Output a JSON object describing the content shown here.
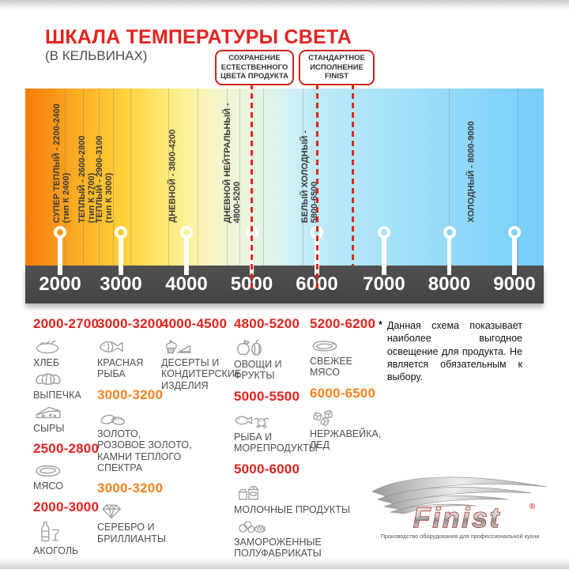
{
  "title": "ШКАЛА ТЕМПЕРАТУРЫ СВЕТА",
  "subtitle": "(В КЕЛЬВИНАХ)",
  "callouts": [
    {
      "label": "СОХРАНЕНИЕ\nЕСТЕСТВЕННОГО\nЦВЕТА ПРОДУКТА"
    },
    {
      "label": "СТАНДАРТНОЕ\nИСПОЛНЕНИЕ\nFINIST"
    }
  ],
  "scale": {
    "unit": "Кельвины",
    "ticks": [
      "2000",
      "3000",
      "4000",
      "5000",
      "6000",
      "7000",
      "8000",
      "9000"
    ],
    "zones": [
      {
        "line1": "СУПЕР ТЕПЛЫЙ - 2200-2400",
        "line2": "(тип К 2400)"
      },
      {
        "line1": "ТЕПЛЫЙ - 2600-2800",
        "line2": "(тип К 2700)"
      },
      {
        "line1": "ТЕПЛЫЙ - 2900-3100",
        "line2": "(тип К 3000)"
      },
      {
        "line1": "ДНЕВНОЙ - 3800-4200",
        "line2": ""
      },
      {
        "line1": "ДНЕВНОЙ НЕЙТРАЛЬНЫЙ -",
        "line2": "4800-5200"
      },
      {
        "line1": "БЕЛЫЙ ХОЛОДНЫЙ -",
        "line2": "5800-6500"
      },
      {
        "line1": "ХОЛОДНЫЙ - 8000-9000",
        "line2": ""
      }
    ]
  },
  "categories": {
    "columns": [
      {
        "items": [
          {
            "type": "range",
            "color": "red",
            "text": "2000-2700"
          },
          {
            "type": "entry",
            "icon": "bread-icon",
            "label": "ХЛЕБ"
          },
          {
            "type": "entry",
            "icon": "croissant-icon",
            "label": "ВЫПЕЧКА"
          },
          {
            "type": "entry",
            "icon": "cheese-icon",
            "label": "СЫРЫ"
          },
          {
            "type": "range",
            "color": "red",
            "text": "2500-2800"
          },
          {
            "type": "entry",
            "icon": "meat-icon",
            "label": "МЯСО"
          },
          {
            "type": "range",
            "color": "red",
            "text": "2000-3000"
          },
          {
            "type": "entry",
            "icon": "alcohol-icon",
            "label": "АКОГОЛЬ"
          }
        ]
      },
      {
        "items": [
          {
            "type": "range",
            "color": "red",
            "text": "3000-3200"
          },
          {
            "type": "entry",
            "icon": "fish-icon",
            "label": "КРАСНАЯ\nРЫБА"
          },
          {
            "type": "range",
            "color": "orange",
            "text": "3000-3200"
          },
          {
            "type": "entry",
            "icon": "rings-icon",
            "label": "ЗОЛОТО,\nРОЗОВОЕ ЗОЛОТО,\nКАМНИ ТЕПЛОГО\nСПЕКТРА"
          },
          {
            "type": "range",
            "color": "orange",
            "text": "3000-3200"
          },
          {
            "type": "entry",
            "icon": "diamond-icon",
            "label": "СЕРЕБРО И\nБРИЛЛИАНТЫ"
          }
        ]
      },
      {
        "items": [
          {
            "type": "range",
            "color": "red",
            "text": "4000-4500"
          },
          {
            "type": "entry",
            "icon": "dessert-icon",
            "label": "ДЕСЕРТЫ И\nКОНДИТЕРСКИЕ\nИЗДЕЛИЯ"
          }
        ]
      },
      {
        "items": [
          {
            "type": "range",
            "color": "red",
            "text": "4800-5200"
          },
          {
            "type": "entry",
            "icon": "fruits-icon",
            "label": "ОВОЩИ И\nФРУКТЫ"
          },
          {
            "type": "range",
            "color": "red",
            "text": "5000-5500"
          },
          {
            "type": "entry",
            "icon": "seafood-icon",
            "label": "РЫБА И\nМОРЕПРОДУКТЫ"
          },
          {
            "type": "range",
            "color": "red",
            "text": "5000-6000"
          },
          {
            "type": "entry",
            "icon": "milk-icon",
            "label": "МОЛОЧНЫЕ ПРОДУКТЫ"
          },
          {
            "type": "entry",
            "icon": "frozen-icon",
            "label": "ЗАМОРОЖЕННЫЕ\nПОЛУФАБРИКАТЫ"
          }
        ]
      },
      {
        "items": [
          {
            "type": "range",
            "color": "red",
            "text": "5200-6200"
          },
          {
            "type": "entry",
            "icon": "steak-icon",
            "label": "СВЕЖЕЕ\nМЯСО"
          },
          {
            "type": "range",
            "color": "orange",
            "text": "6000-6500"
          },
          {
            "type": "entry",
            "icon": "ice-icon",
            "label": "НЕРЖАВЕЙКА,\nЛЕД"
          }
        ]
      }
    ]
  },
  "note": {
    "marker": "*",
    "text": "Данная схема показывает наиболее выгодное освещение для продукта. Не является обязательным к выбору."
  },
  "logo": {
    "brand": "Finist",
    "registered": "®",
    "tagline": "Производство оборудования для профессиональной кухни"
  },
  "colors": {
    "accent_red": "#E2231E",
    "accent_orange": "#F5821F",
    "dash_red": "#E1251B",
    "bar_gray": "#4A4A4A"
  }
}
